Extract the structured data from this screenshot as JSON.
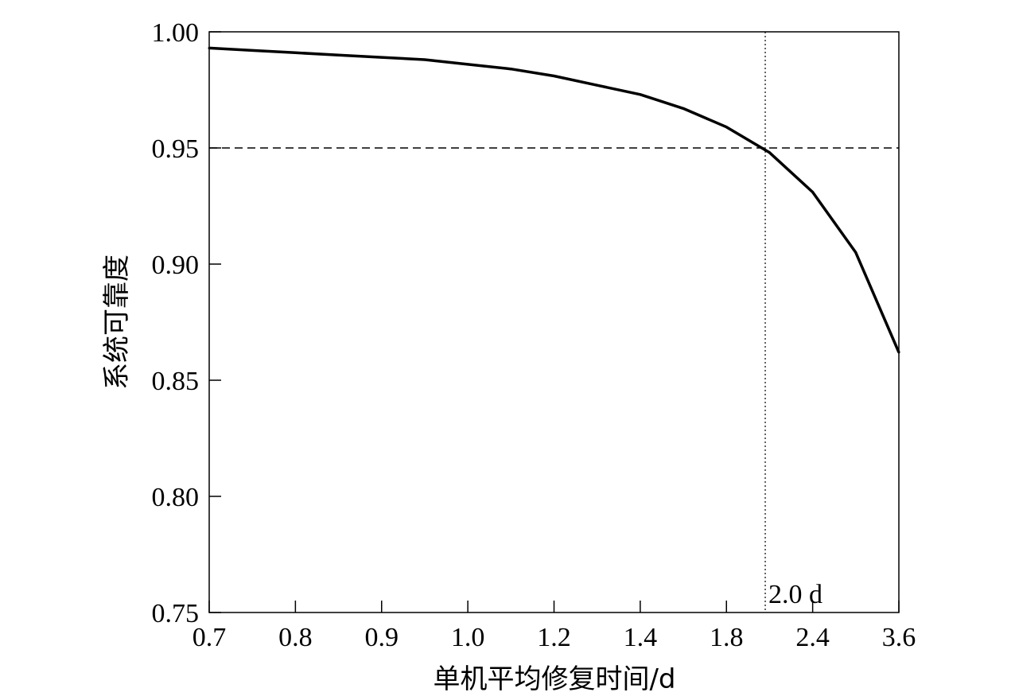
{
  "chart_data": {
    "type": "line",
    "xlabel": "单机平均修复时间/d",
    "ylabel": "系统可靠度",
    "ylim": [
      0.75,
      1.0
    ],
    "x_tick_labels": [
      "0.7",
      "0.8",
      "0.9",
      "1.0",
      "1.2",
      "1.4",
      "1.8",
      "2.4",
      "3.6"
    ],
    "y_ticks": [
      0.75,
      0.8,
      0.85,
      0.9,
      0.95,
      1.0
    ],
    "y_tick_labels": [
      "0.75",
      "0.80",
      "0.85",
      "0.90",
      "0.95",
      "1.00"
    ],
    "grid": false,
    "legend": "none",
    "series": [
      {
        "x_positions": [
          0,
          0.5,
          1,
          1.5,
          2,
          2.5,
          3,
          3.5,
          4,
          4.5,
          5,
          5.5,
          6,
          6.5,
          7,
          7.5,
          8
        ],
        "values": [
          0.993,
          0.992,
          0.991,
          0.99,
          0.989,
          0.988,
          0.986,
          0.984,
          0.981,
          0.977,
          0.973,
          0.967,
          0.959,
          0.948,
          0.931,
          0.905,
          0.862
        ]
      }
    ],
    "reference_lines": {
      "horizontal_y": 0.95,
      "vertical_x_position": 6.45,
      "vertical_label": "2.0 d"
    },
    "colors": {
      "line": "#000000",
      "axis": "#000000",
      "background": "#ffffff"
    }
  }
}
